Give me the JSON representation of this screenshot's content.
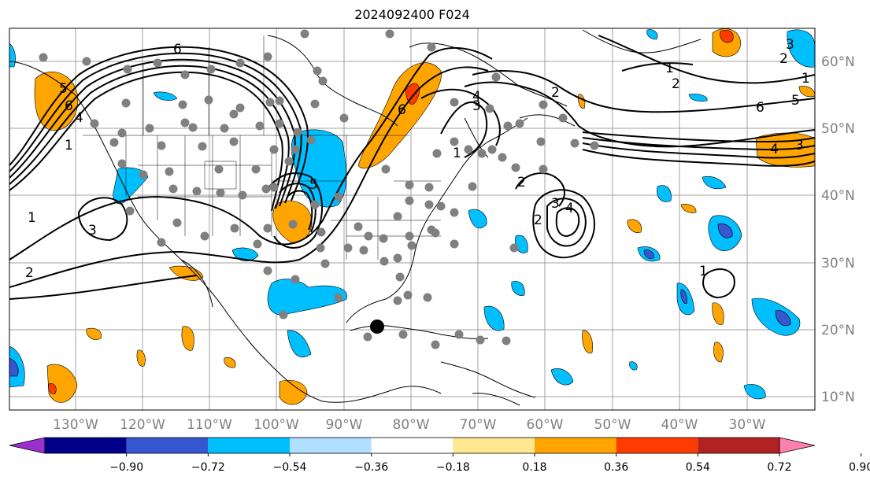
{
  "title": "2024092400 F024",
  "map": {
    "lon_labels": [
      "130°W",
      "120°W",
      "110°W",
      "100°W",
      "90°W",
      "80°W",
      "70°W",
      "60°W",
      "50°W",
      "40°W",
      "30°W"
    ],
    "lat_labels": [
      "60°N",
      "50°N",
      "40°N",
      "30°N",
      "20°N",
      "10°N"
    ],
    "contour_labels": [
      "6",
      "5",
      "6",
      "4",
      "3",
      "2",
      "1",
      "1",
      "2",
      "6",
      "5",
      "4",
      "3",
      "2",
      "1",
      "6",
      "5",
      "4",
      "3",
      "2",
      "3",
      "4",
      "2",
      "1",
      "1",
      "2",
      "3",
      "1"
    ],
    "storm_marker": "black-dot"
  },
  "colorbar": {
    "ticks": [
      "−0.90",
      "−0.72",
      "−0.54",
      "−0.36",
      "−0.18",
      "0.18",
      "0.36",
      "0.54",
      "0.72",
      "0.90"
    ],
    "colors": [
      "#9b30d0",
      "#00008b",
      "#3557d0",
      "#00bfff",
      "#b0e0ff",
      "#ffffff",
      "#ffe890",
      "#ffa500",
      "#ff3c00",
      "#b22222",
      "#ff80b0"
    ]
  }
}
